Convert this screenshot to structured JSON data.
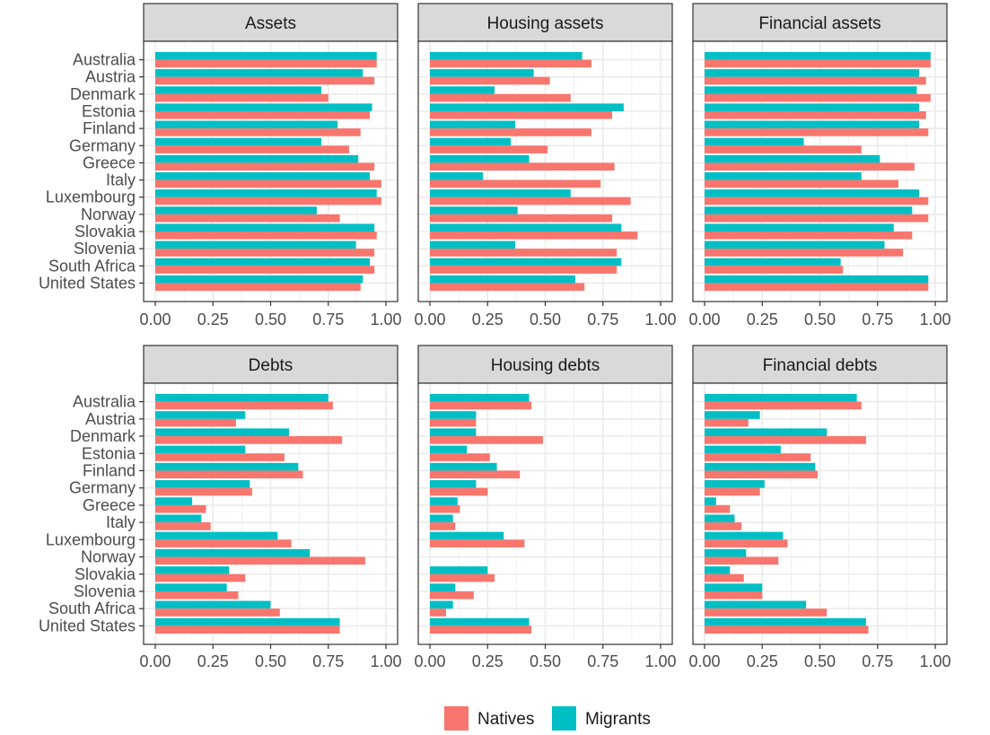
{
  "chart_data": {
    "type": "bar",
    "orientation": "horizontal",
    "grid": true,
    "legend_position": "bottom",
    "xlim": [
      0,
      1
    ],
    "x_ticks": [
      "0.00",
      "0.25",
      "0.50",
      "0.75",
      "1.00"
    ],
    "categories": [
      "Australia",
      "Austria",
      "Denmark",
      "Estonia",
      "Finland",
      "Germany",
      "Greece",
      "Italy",
      "Luxembourg",
      "Norway",
      "Slovakia",
      "Slovenia",
      "South Africa",
      "United States"
    ],
    "legend": [
      {
        "name": "Natives",
        "color": "#F8766D"
      },
      {
        "name": "Migrants",
        "color": "#00BFC4"
      }
    ],
    "panels": [
      {
        "title": "Assets",
        "natives": [
          0.96,
          0.95,
          0.75,
          0.93,
          0.89,
          0.84,
          0.95,
          0.98,
          0.98,
          0.8,
          0.96,
          0.95,
          0.95,
          0.89
        ],
        "migrants": [
          0.96,
          0.9,
          0.72,
          0.94,
          0.79,
          0.72,
          0.88,
          0.93,
          0.96,
          0.7,
          0.95,
          0.87,
          0.93,
          0.9
        ]
      },
      {
        "title": "Housing assets",
        "natives": [
          0.7,
          0.52,
          0.61,
          0.79,
          0.7,
          0.51,
          0.8,
          0.74,
          0.87,
          0.79,
          0.9,
          0.81,
          0.81,
          0.67
        ],
        "migrants": [
          0.66,
          0.45,
          0.28,
          0.84,
          0.37,
          0.35,
          0.43,
          0.23,
          0.61,
          0.38,
          0.83,
          0.37,
          0.83,
          0.63
        ]
      },
      {
        "title": "Financial assets",
        "natives": [
          0.98,
          0.96,
          0.98,
          0.96,
          0.97,
          0.68,
          0.91,
          0.84,
          0.97,
          0.97,
          0.9,
          0.86,
          0.6,
          0.97
        ],
        "migrants": [
          0.98,
          0.93,
          0.92,
          0.93,
          0.93,
          0.43,
          0.76,
          0.68,
          0.93,
          0.9,
          0.82,
          0.78,
          0.59,
          0.97
        ]
      },
      {
        "title": "Debts",
        "natives": [
          0.77,
          0.35,
          0.81,
          0.56,
          0.64,
          0.42,
          0.22,
          0.24,
          0.59,
          0.91,
          0.39,
          0.36,
          0.54,
          0.8
        ],
        "migrants": [
          0.75,
          0.39,
          0.58,
          0.39,
          0.62,
          0.41,
          0.16,
          0.2,
          0.53,
          0.67,
          0.32,
          0.31,
          0.5,
          0.8
        ]
      },
      {
        "title": "Housing debts",
        "natives": [
          0.44,
          0.2,
          0.49,
          0.26,
          0.39,
          0.25,
          0.13,
          0.11,
          0.41,
          0.0,
          0.28,
          0.19,
          0.07,
          0.44
        ],
        "migrants": [
          0.43,
          0.2,
          0.2,
          0.16,
          0.29,
          0.2,
          0.12,
          0.1,
          0.32,
          0.0,
          0.25,
          0.11,
          0.1,
          0.43
        ]
      },
      {
        "title": "Financial debts",
        "natives": [
          0.68,
          0.19,
          0.7,
          0.46,
          0.49,
          0.24,
          0.11,
          0.16,
          0.36,
          0.32,
          0.17,
          0.25,
          0.53,
          0.71
        ],
        "migrants": [
          0.66,
          0.24,
          0.53,
          0.33,
          0.48,
          0.26,
          0.05,
          0.13,
          0.34,
          0.18,
          0.11,
          0.25,
          0.44,
          0.7
        ]
      }
    ]
  }
}
